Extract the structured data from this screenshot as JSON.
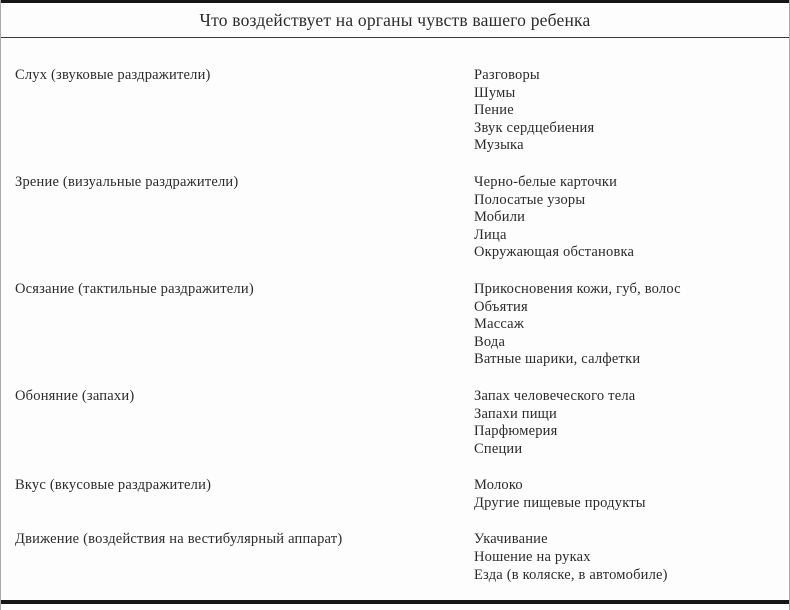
{
  "title": "Что воздействует на органы чувств вашего ребенка",
  "rows": [
    {
      "sense": "Слух (звуковые раздражители)",
      "stimuli": [
        "Разговоры",
        "Шумы",
        "Пение",
        "Звук сердцебиения",
        "Музыка"
      ]
    },
    {
      "sense": "Зрение (визуальные раздражители)",
      "stimuli": [
        "Черно-белые карточки",
        "Полосатые узоры",
        "Мобили",
        "Лица",
        "Окружающая обстановка"
      ]
    },
    {
      "sense": "Осязание (тактильные раздражители)",
      "stimuli": [
        "Прикосновения кожи, губ, волос",
        "Объятия",
        "Массаж",
        "Вода",
        "Ватные шарики, салфетки"
      ]
    },
    {
      "sense": "Обоняние (запахи)",
      "stimuli": [
        "Запах человеческого тела",
        "Запахи пищи",
        "Парфюмерия",
        "Специи"
      ]
    },
    {
      "sense": "Вкус (вкусовые раздражители)",
      "stimuli": [
        "Молоко",
        "Другие пищевые продукты"
      ]
    },
    {
      "sense": "Движение (воздействия на вестибулярный аппарат)",
      "stimuli": [
        "Укачивание",
        "Ношение на руках",
        "Езда (в коляске, в автомобиле)"
      ]
    }
  ],
  "colors": {
    "text": "#2b2b2b",
    "rule_heavy": "#161616",
    "rule_light": "#3a3a3a",
    "rule_side": "#ababab",
    "background": "#fdfdfd"
  }
}
